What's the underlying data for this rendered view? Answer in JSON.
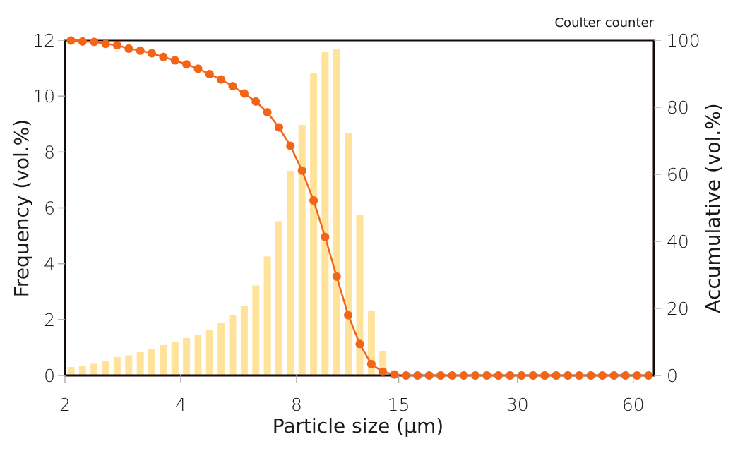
{
  "chart_data": {
    "type": "bar+line",
    "title": "",
    "annotation": "Coulter counter",
    "xlabel": "Particle size (µm)",
    "ylabel_left": "Frequency (vol.%)",
    "ylabel_right": "Accumulative (vol.%)",
    "x_scale": "log",
    "xlim": [
      2,
      62
    ],
    "x_ticks": [
      2,
      4,
      8,
      15,
      30,
      60
    ],
    "y_left_lim": [
      0,
      12
    ],
    "y_left_ticks": [
      0,
      2,
      4,
      6,
      8,
      10,
      12
    ],
    "y_right_lim": [
      0,
      100
    ],
    "y_right_ticks": [
      0,
      20,
      40,
      60,
      80,
      100
    ],
    "grid": false,
    "legend": null,
    "colors": {
      "bars": "#FFE39A",
      "line": "#F26418",
      "frame": "#140a05",
      "ticks": "#b0b0b0"
    },
    "series": [
      {
        "name": "Frequency (vol.%)",
        "kind": "bar",
        "axis": "left",
        "values": [
          0.3,
          0.33,
          0.42,
          0.53,
          0.66,
          0.72,
          0.83,
          0.95,
          1.09,
          1.19,
          1.34,
          1.46,
          1.64,
          1.89,
          2.17,
          2.5,
          3.22,
          4.26,
          5.52,
          7.33,
          8.97,
          10.81,
          11.6,
          11.67,
          8.69,
          5.76,
          2.32,
          0.86
        ]
      },
      {
        "name": "Accumulative (vol.%)",
        "kind": "line",
        "axis": "right",
        "values": [
          99.9,
          99.6,
          99.5,
          98.9,
          98.5,
          97.5,
          96.9,
          96.1,
          95.0,
          94.0,
          92.8,
          91.5,
          89.9,
          88.3,
          86.3,
          84.1,
          81.7,
          78.5,
          74.0,
          68.5,
          61.1,
          52.2,
          41.3,
          29.5,
          18.0,
          9.4,
          3.4,
          1.1,
          0.3,
          0,
          0,
          0,
          0,
          0,
          0,
          0,
          0,
          0,
          0,
          0,
          0,
          0,
          0,
          0,
          0,
          0,
          0,
          0,
          0,
          0,
          0
        ]
      }
    ],
    "bin_start_um": 2.03,
    "bin_ratio": 1.0716
  }
}
